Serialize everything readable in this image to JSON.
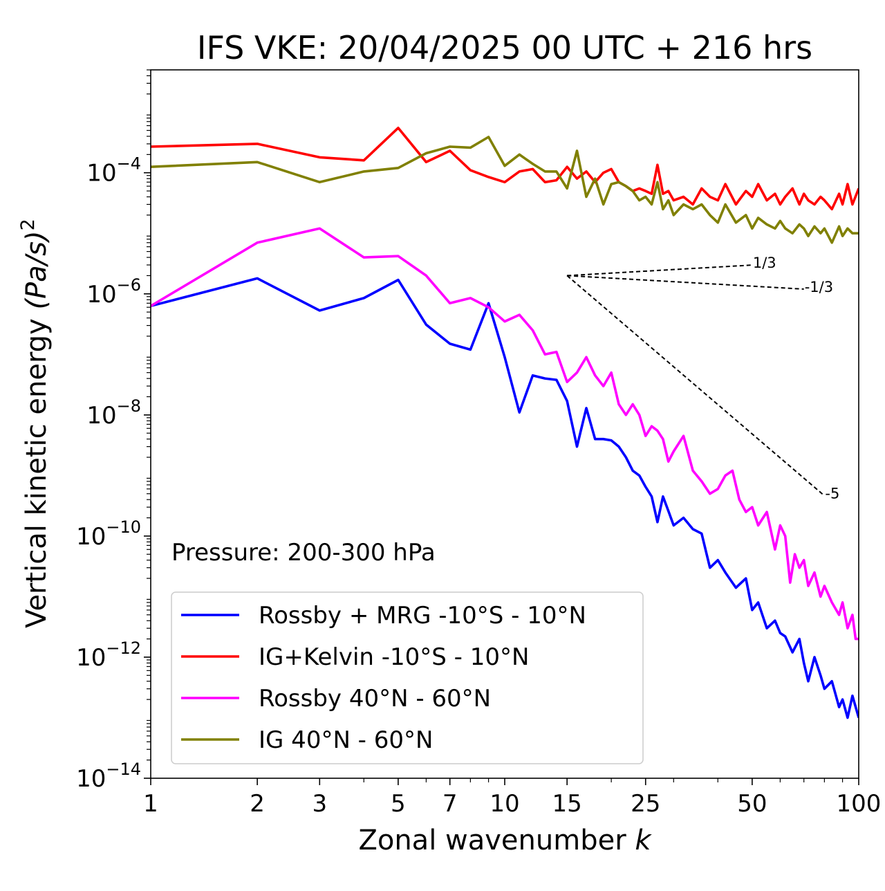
{
  "chart_data": {
    "type": "line",
    "title": "IFS VKE: 20/04/2025 00 UTC + 216 hrs",
    "xlabel_text": "Zonal wavenumber ",
    "xlabel_var": "k",
    "ylabel_text": "Vertical kinetic energy ",
    "ylabel_unit": "(Pa/s)",
    "ylabel_power": "2",
    "x_scale": "log",
    "y_scale": "log",
    "xlim": [
      1,
      100
    ],
    "ylim": [
      1e-14,
      0.005
    ],
    "x_ticks": [
      1,
      2,
      3,
      5,
      7,
      10,
      15,
      25,
      50,
      100
    ],
    "x_tick_labels": [
      "1",
      "2",
      "3",
      "5",
      "7",
      "10",
      "15",
      "25",
      "50",
      "100"
    ],
    "y_ticks": [
      -14,
      -12,
      -10,
      -8,
      -6,
      -4
    ],
    "y_tick_base": "10",
    "y_tick_exponents": [
      "−14",
      "−12",
      "−10",
      "−8",
      "−6",
      "−4"
    ],
    "annotation": "Pressure: 200-300 hPa",
    "legend_position": "lower-left",
    "reference_slopes": [
      {
        "label": "1/3",
        "k0": 15,
        "k1": 50,
        "v0": 2e-06,
        "slope": 0.3333
      },
      {
        "label": "-1/3",
        "k0": 15,
        "k1": 70,
        "v0": 2e-06,
        "slope": -0.3333
      },
      {
        "label": "-5",
        "k0": 15,
        "k1": 80,
        "v0": 2e-06,
        "slope": -5
      }
    ],
    "series": [
      {
        "name": "Rossby + MRG -10°S - 10°N",
        "color": "#0000ff",
        "anchors": [
          [
            1,
            6.3e-07
          ],
          [
            2,
            1.8e-06
          ],
          [
            3,
            5.3e-07
          ],
          [
            4,
            8.5e-07
          ],
          [
            5,
            1.7e-06
          ],
          [
            6,
            3.1e-07
          ],
          [
            7,
            1.5e-07
          ],
          [
            8,
            1.2e-07
          ],
          [
            9,
            7e-07
          ],
          [
            10,
            9e-08
          ],
          [
            11,
            1.1e-08
          ],
          [
            12,
            4.5e-08
          ],
          [
            13,
            4e-08
          ],
          [
            14,
            3.8e-08
          ],
          [
            15,
            1.7e-08
          ],
          [
            16,
            3e-09
          ],
          [
            17,
            1.3e-08
          ],
          [
            18,
            4e-09
          ],
          [
            19,
            4e-09
          ],
          [
            20,
            3.8e-09
          ],
          [
            21,
            3e-09
          ],
          [
            22,
            2e-09
          ],
          [
            23,
            1.2e-09
          ],
          [
            24,
            1e-09
          ],
          [
            25,
            6.5e-10
          ],
          [
            26,
            4.5e-10
          ],
          [
            27,
            1.7e-10
          ],
          [
            28,
            4.5e-10
          ],
          [
            29,
            2.6e-10
          ],
          [
            30,
            1.5e-10
          ],
          [
            32,
            2e-10
          ],
          [
            34,
            1.3e-10
          ],
          [
            36,
            1.1e-10
          ],
          [
            38,
            3e-11
          ],
          [
            40,
            4e-11
          ],
          [
            42,
            2.5e-11
          ],
          [
            45,
            1.4e-11
          ],
          [
            48,
            2e-11
          ],
          [
            50,
            6e-12
          ],
          [
            52,
            8e-12
          ],
          [
            55,
            3e-12
          ],
          [
            58,
            4e-12
          ],
          [
            60,
            2.5e-12
          ],
          [
            62,
            2.2e-12
          ],
          [
            65,
            1.2e-12
          ],
          [
            68,
            2e-12
          ],
          [
            70,
            8e-13
          ],
          [
            72,
            4e-13
          ],
          [
            75,
            1e-12
          ],
          [
            78,
            5e-13
          ],
          [
            80,
            3e-13
          ],
          [
            84,
            4e-13
          ],
          [
            88,
            1.5e-13
          ],
          [
            90,
            2e-13
          ],
          [
            93,
            1e-13
          ],
          [
            96,
            2.3e-13
          ],
          [
            100,
            1e-13
          ]
        ]
      },
      {
        "name": "IG+Kelvin -10°S - 10°N",
        "color": "#ff0000",
        "anchors": [
          [
            1,
            0.00027
          ],
          [
            2,
            0.0003
          ],
          [
            3,
            0.00018
          ],
          [
            4,
            0.00016
          ],
          [
            5,
            0.00055
          ],
          [
            6,
            0.00015
          ],
          [
            7,
            0.00023
          ],
          [
            8,
            0.00011
          ],
          [
            9,
            8.5e-05
          ],
          [
            10,
            7e-05
          ],
          [
            11,
            0.000105
          ],
          [
            12,
            0.000115
          ],
          [
            13,
            7e-05
          ],
          [
            14,
            7.5e-05
          ],
          [
            15,
            0.000125
          ],
          [
            16,
            8e-05
          ],
          [
            17,
            0.000105
          ],
          [
            18,
            7e-05
          ],
          [
            19,
            0.0001
          ],
          [
            20,
            0.000115
          ],
          [
            21,
            7e-05
          ],
          [
            22,
            6e-05
          ],
          [
            23,
            5e-05
          ],
          [
            24,
            5.5e-05
          ],
          [
            25,
            5e-05
          ],
          [
            26,
            4.5e-05
          ],
          [
            27,
            0.000135
          ],
          [
            28,
            4.5e-05
          ],
          [
            29,
            5e-05
          ],
          [
            30,
            3.5e-05
          ],
          [
            32,
            4e-05
          ],
          [
            34,
            3e-05
          ],
          [
            36,
            5.5e-05
          ],
          [
            38,
            4e-05
          ],
          [
            40,
            3.5e-05
          ],
          [
            42,
            6.5e-05
          ],
          [
            45,
            3e-05
          ],
          [
            48,
            5e-05
          ],
          [
            50,
            4e-05
          ],
          [
            52,
            6.5e-05
          ],
          [
            55,
            3.5e-05
          ],
          [
            58,
            4.5e-05
          ],
          [
            60,
            3e-05
          ],
          [
            62,
            4e-05
          ],
          [
            65,
            5.5e-05
          ],
          [
            68,
            3e-05
          ],
          [
            70,
            4.5e-05
          ],
          [
            72,
            3.5e-05
          ],
          [
            75,
            3e-05
          ],
          [
            78,
            4e-05
          ],
          [
            80,
            3.5e-05
          ],
          [
            84,
            2.5e-05
          ],
          [
            88,
            4.5e-05
          ],
          [
            90,
            3e-05
          ],
          [
            93,
            6.5e-05
          ],
          [
            96,
            3e-05
          ],
          [
            100,
            5.5e-05
          ]
        ]
      },
      {
        "name": "Rossby 40°N - 60°N",
        "color": "#ff00ff",
        "anchors": [
          [
            1,
            6.3e-07
          ],
          [
            2,
            7e-06
          ],
          [
            3,
            1.2e-05
          ],
          [
            4,
            4e-06
          ],
          [
            5,
            4.2e-06
          ],
          [
            6,
            2e-06
          ],
          [
            7,
            7e-07
          ],
          [
            8,
            8.5e-07
          ],
          [
            9,
            6e-07
          ],
          [
            10,
            3.5e-07
          ],
          [
            11,
            4.5e-07
          ],
          [
            12,
            2.5e-07
          ],
          [
            13,
            1e-07
          ],
          [
            14,
            1.1e-07
          ],
          [
            15,
            3.5e-08
          ],
          [
            16,
            5e-08
          ],
          [
            17,
            9e-08
          ],
          [
            18,
            4.5e-08
          ],
          [
            19,
            3e-08
          ],
          [
            20,
            5e-08
          ],
          [
            21,
            1.5e-08
          ],
          [
            22,
            1e-08
          ],
          [
            23,
            1.5e-08
          ],
          [
            24,
            1e-08
          ],
          [
            25,
            4.5e-09
          ],
          [
            26,
            6.5e-09
          ],
          [
            27,
            5.5e-09
          ],
          [
            28,
            4e-09
          ],
          [
            29,
            1.7e-09
          ],
          [
            30,
            2.5e-09
          ],
          [
            32,
            4.5e-09
          ],
          [
            34,
            1.2e-09
          ],
          [
            36,
            8e-10
          ],
          [
            38,
            5e-10
          ],
          [
            40,
            6e-10
          ],
          [
            42,
            1e-09
          ],
          [
            44,
            1.2e-09
          ],
          [
            46,
            4e-10
          ],
          [
            48,
            2.5e-10
          ],
          [
            50,
            3e-10
          ],
          [
            52,
            1.5e-10
          ],
          [
            55,
            2.5e-10
          ],
          [
            58,
            6e-11
          ],
          [
            60,
            1.5e-10
          ],
          [
            62,
            1e-10
          ],
          [
            64,
            1.7e-11
          ],
          [
            66,
            5e-11
          ],
          [
            68,
            3e-11
          ],
          [
            70,
            4e-11
          ],
          [
            72,
            1.5e-11
          ],
          [
            75,
            2.5e-11
          ],
          [
            78,
            1e-11
          ],
          [
            80,
            1.5e-11
          ],
          [
            84,
            8e-12
          ],
          [
            88,
            5e-12
          ],
          [
            90,
            8e-12
          ],
          [
            93,
            3e-12
          ],
          [
            96,
            5e-12
          ],
          [
            98,
            2e-12
          ],
          [
            100,
            2e-12
          ]
        ]
      },
      {
        "name": "IG 40°N - 60°N",
        "color": "#808000",
        "anchors": [
          [
            1,
            0.000125
          ],
          [
            2,
            0.00015
          ],
          [
            3,
            7e-05
          ],
          [
            4,
            0.000105
          ],
          [
            5,
            0.00012
          ],
          [
            6,
            0.00021
          ],
          [
            7,
            0.00027
          ],
          [
            8,
            0.00026
          ],
          [
            9,
            0.00039
          ],
          [
            10,
            0.00013
          ],
          [
            11,
            0.0002
          ],
          [
            12,
            0.00014
          ],
          [
            13,
            0.000105
          ],
          [
            14,
            0.000105
          ],
          [
            15,
            5.5e-05
          ],
          [
            16,
            0.00023
          ],
          [
            17,
            4e-05
          ],
          [
            18,
            8e-05
          ],
          [
            19,
            3e-05
          ],
          [
            20,
            6.5e-05
          ],
          [
            21,
            7e-05
          ],
          [
            22,
            6e-05
          ],
          [
            23,
            5e-05
          ],
          [
            24,
            3.5e-05
          ],
          [
            25,
            4e-05
          ],
          [
            26,
            3e-05
          ],
          [
            27,
            7e-05
          ],
          [
            28,
            2.5e-05
          ],
          [
            29,
            3.5e-05
          ],
          [
            30,
            2e-05
          ],
          [
            32,
            3e-05
          ],
          [
            34,
            2.5e-05
          ],
          [
            36,
            3e-05
          ],
          [
            38,
            2e-05
          ],
          [
            40,
            1.5e-05
          ],
          [
            42,
            3e-05
          ],
          [
            45,
            1.5e-05
          ],
          [
            48,
            2e-05
          ],
          [
            50,
            1.2e-05
          ],
          [
            52,
            1.8e-05
          ],
          [
            55,
            1.4e-05
          ],
          [
            58,
            1.2e-05
          ],
          [
            60,
            1.6e-05
          ],
          [
            62,
            1.2e-05
          ],
          [
            65,
            1e-05
          ],
          [
            68,
            1.4e-05
          ],
          [
            70,
            1.2e-05
          ],
          [
            72,
            9e-06
          ],
          [
            75,
            1.3e-05
          ],
          [
            78,
            1e-05
          ],
          [
            80,
            1.2e-05
          ],
          [
            84,
            7e-06
          ],
          [
            88,
            1.3e-05
          ],
          [
            90,
            9e-06
          ],
          [
            93,
            1.2e-05
          ],
          [
            96,
            1e-05
          ],
          [
            100,
            1e-05
          ]
        ]
      }
    ]
  }
}
